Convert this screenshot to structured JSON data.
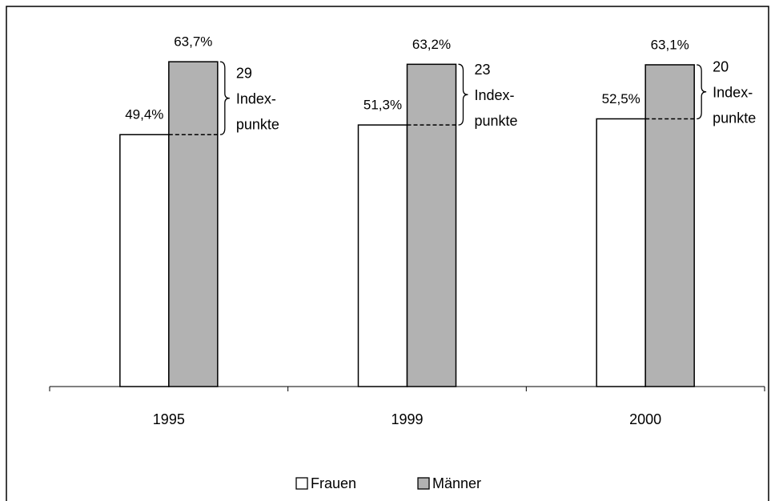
{
  "chart_data": {
    "type": "bar",
    "categories": [
      "1995",
      "1999",
      "2000"
    ],
    "series": [
      {
        "name": "Frauen",
        "color": "#ffffff",
        "values": [
          49.4,
          51.3,
          52.5
        ],
        "value_labels": [
          "49,4%",
          "51,3%",
          "52,5%"
        ]
      },
      {
        "name": "Männer",
        "color": "#b2b2b2",
        "values": [
          63.7,
          63.2,
          63.1
        ],
        "value_labels": [
          "63,7%",
          "63,2%",
          "63,1%"
        ]
      }
    ],
    "annotations": [
      {
        "value": 29,
        "text": [
          "Index-",
          "punkte"
        ]
      },
      {
        "value": 23,
        "text": [
          "Index-",
          "punkte"
        ]
      },
      {
        "value": 20,
        "text": [
          "Index-",
          "punkte"
        ]
      }
    ],
    "ylim": [
      0,
      70
    ],
    "legend": "bottom"
  }
}
